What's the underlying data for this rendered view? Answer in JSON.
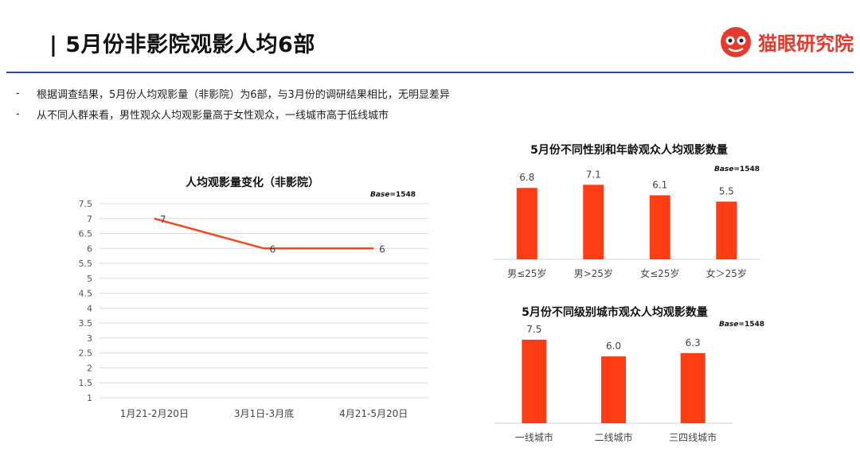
{
  "header": {
    "title": "| 5月份非影院观影人均6部",
    "brand_name": "猫眼研究院",
    "brand_color": "#e63a2e",
    "logo_icon": "cat-face-icon"
  },
  "bullets": [
    {
      "dash": "-",
      "text": "根据调查结果，5月份人均观影量（非影院）为6部，与3月份的调研结果相比，无明显差异"
    },
    {
      "dash": "-",
      "text": "从不同人群来看，男性观众人均观影量高于女性观众，一线城市高于低线城市"
    }
  ],
  "chart_data": [
    {
      "type": "line",
      "title": "人均观影量变化（非影院）",
      "base_prefix": "Base",
      "base_value": "=1548",
      "categories": [
        "1月21-2月20日",
        "3月1日-3月底",
        "4月21-5月20日"
      ],
      "values": [
        7,
        6,
        6
      ],
      "labels": [
        "7",
        "6",
        "6"
      ],
      "ylim": [
        1,
        7.5
      ],
      "yticks": [
        "1",
        "1.5",
        "2",
        "2.5",
        "3",
        "3.5",
        "4",
        "4.5",
        "5",
        "5.5",
        "6",
        "6.5",
        "7",
        "7.5"
      ],
      "grid": true,
      "color": "#f4481e"
    },
    {
      "type": "bar",
      "title": "5月份不同性别和年龄观众人均观影数量",
      "base_prefix": "Base",
      "base_value": "=1548",
      "categories": [
        "男≤25岁",
        "男>25岁",
        "女≤25岁",
        "女＞25岁"
      ],
      "values": [
        6.8,
        7.1,
        6.1,
        5.5
      ],
      "labels": [
        "6.8",
        "7.1",
        "6.1",
        "5.5"
      ],
      "color": "#fe3d14"
    },
    {
      "type": "bar",
      "title": "5月份不同级别城市观众人均观影数量",
      "base_prefix": "Base",
      "base_value": "=1548",
      "categories": [
        "一线城市",
        "二线城市",
        "三四线城市"
      ],
      "values": [
        7.5,
        6.0,
        6.3
      ],
      "labels": [
        "7.5",
        "6.0",
        "6.3"
      ],
      "color": "#fe3d14"
    }
  ]
}
